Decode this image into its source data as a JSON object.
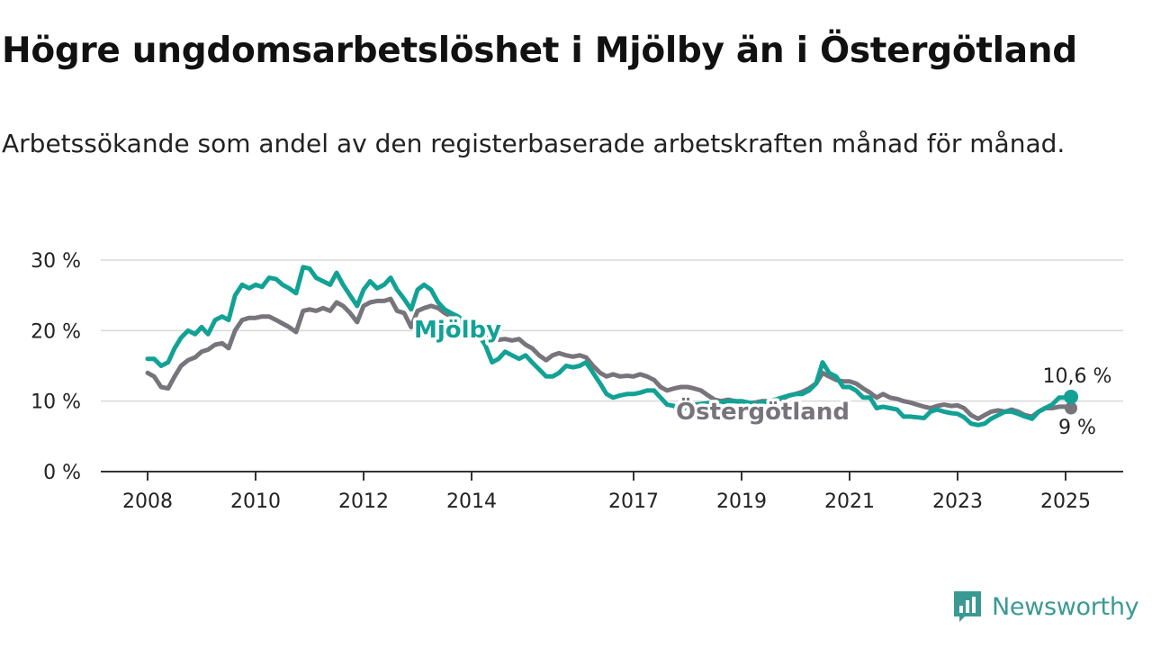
{
  "title": "Högre ungdomsarbetslöshet i Mjölby än i Östergötland",
  "subtitle": "Arbetssökande som andel av den registerbaserade arbetskraften månad för månad.",
  "brand": {
    "name": "Newsworthy",
    "color": "#3a9a93"
  },
  "colors": {
    "mjolby": "#12a295",
    "ostergotland": "#77747c",
    "grid": "#d9d9d9",
    "axis": "#333333"
  },
  "chart_data": {
    "type": "line",
    "title": "Högre ungdomsarbetslöshet i Mjölby än i Östergötland",
    "subtitle": "Arbetssökande som andel av den registerbaserade arbetskraften månad för månad.",
    "xlabel": "",
    "ylabel": "",
    "xlim": [
      2008.0,
      2025.1
    ],
    "ylim": [
      0,
      30
    ],
    "x_ticks": [
      2008,
      2010,
      2012,
      2014,
      2017,
      2019,
      2021,
      2023,
      2025
    ],
    "x_tick_labels": [
      "2008",
      "2010",
      "2012",
      "2014",
      "2017",
      "2019",
      "2021",
      "2023",
      "2025"
    ],
    "y_ticks": [
      0,
      10,
      20,
      30
    ],
    "y_tick_labels": [
      "0 %",
      "10 %",
      "20 %",
      "30 %"
    ],
    "grid": "horizontal",
    "legend": "direct labels on lines",
    "series": [
      {
        "name": "Mjölby",
        "label_text": "Mjölby",
        "end_value": 10.6,
        "end_label": "10,6 %",
        "points": [
          [
            2008.0,
            16.0
          ],
          [
            2008.12,
            16.0
          ],
          [
            2008.25,
            15.0
          ],
          [
            2008.38,
            15.5
          ],
          [
            2008.5,
            17.5
          ],
          [
            2008.62,
            19.0
          ],
          [
            2008.75,
            20.0
          ],
          [
            2008.88,
            19.5
          ],
          [
            2009.0,
            20.5
          ],
          [
            2009.12,
            19.5
          ],
          [
            2009.25,
            21.5
          ],
          [
            2009.38,
            22.0
          ],
          [
            2009.5,
            21.5
          ],
          [
            2009.62,
            25.0
          ],
          [
            2009.75,
            26.5
          ],
          [
            2009.88,
            26.0
          ],
          [
            2010.0,
            26.5
          ],
          [
            2010.12,
            26.2
          ],
          [
            2010.25,
            27.5
          ],
          [
            2010.38,
            27.3
          ],
          [
            2010.5,
            26.5
          ],
          [
            2010.62,
            26.0
          ],
          [
            2010.75,
            25.3
          ],
          [
            2010.88,
            29.0
          ],
          [
            2011.0,
            28.8
          ],
          [
            2011.12,
            27.5
          ],
          [
            2011.25,
            27.0
          ],
          [
            2011.38,
            26.5
          ],
          [
            2011.5,
            28.2
          ],
          [
            2011.62,
            26.5
          ],
          [
            2011.75,
            25.0
          ],
          [
            2011.88,
            23.5
          ],
          [
            2012.0,
            25.8
          ],
          [
            2012.12,
            27.0
          ],
          [
            2012.25,
            26.0
          ],
          [
            2012.38,
            26.5
          ],
          [
            2012.5,
            27.5
          ],
          [
            2012.62,
            25.8
          ],
          [
            2012.75,
            24.5
          ],
          [
            2012.88,
            23.0
          ],
          [
            2013.0,
            25.8
          ],
          [
            2013.12,
            26.5
          ],
          [
            2013.25,
            25.8
          ],
          [
            2013.38,
            24.0
          ],
          [
            2013.5,
            23.0
          ],
          [
            2013.62,
            22.5
          ],
          [
            2013.75,
            22.0
          ],
          [
            2013.88,
            21.2
          ],
          [
            2014.0,
            20.2
          ],
          [
            2014.12,
            19.5
          ],
          [
            2014.25,
            18.0
          ],
          [
            2014.38,
            15.5
          ],
          [
            2014.5,
            16.0
          ],
          [
            2014.62,
            17.0
          ],
          [
            2014.75,
            16.5
          ],
          [
            2014.88,
            16.0
          ],
          [
            2015.0,
            16.5
          ],
          [
            2015.12,
            15.5
          ],
          [
            2015.25,
            14.5
          ],
          [
            2015.38,
            13.5
          ],
          [
            2015.5,
            13.5
          ],
          [
            2015.62,
            14.0
          ],
          [
            2015.75,
            15.0
          ],
          [
            2015.88,
            14.8
          ],
          [
            2016.0,
            15.0
          ],
          [
            2016.12,
            15.5
          ],
          [
            2016.25,
            14.0
          ],
          [
            2016.38,
            12.5
          ],
          [
            2016.5,
            11.0
          ],
          [
            2016.62,
            10.5
          ],
          [
            2016.75,
            10.8
          ],
          [
            2016.88,
            11.0
          ],
          [
            2017.0,
            11.0
          ],
          [
            2017.12,
            11.2
          ],
          [
            2017.25,
            11.5
          ],
          [
            2017.38,
            11.5
          ],
          [
            2017.5,
            10.5
          ],
          [
            2017.62,
            9.5
          ],
          [
            2017.75,
            9.3
          ],
          [
            2017.88,
            8.5
          ],
          [
            2018.0,
            9.5
          ],
          [
            2018.12,
            9.5
          ],
          [
            2018.25,
            9.6
          ],
          [
            2018.38,
            9.7
          ],
          [
            2018.5,
            9.8
          ],
          [
            2018.62,
            9.8
          ],
          [
            2018.75,
            10.0
          ],
          [
            2018.88,
            10.0
          ],
          [
            2019.0,
            10.0
          ],
          [
            2019.12,
            9.8
          ],
          [
            2019.25,
            9.6
          ],
          [
            2019.38,
            9.8
          ],
          [
            2019.5,
            10.0
          ],
          [
            2019.62,
            10.2
          ],
          [
            2019.75,
            10.5
          ],
          [
            2019.88,
            10.8
          ],
          [
            2020.0,
            11.0
          ],
          [
            2020.12,
            11.0
          ],
          [
            2020.25,
            11.5
          ],
          [
            2020.38,
            12.5
          ],
          [
            2020.5,
            15.5
          ],
          [
            2020.62,
            14.0
          ],
          [
            2020.75,
            13.5
          ],
          [
            2020.88,
            12.0
          ],
          [
            2021.0,
            12.0
          ],
          [
            2021.12,
            11.5
          ],
          [
            2021.25,
            10.5
          ],
          [
            2021.38,
            10.5
          ],
          [
            2021.5,
            9.0
          ],
          [
            2021.62,
            9.2
          ],
          [
            2021.75,
            9.0
          ],
          [
            2021.88,
            8.8
          ],
          [
            2022.0,
            7.8
          ],
          [
            2022.12,
            7.8
          ],
          [
            2022.25,
            7.7
          ],
          [
            2022.38,
            7.6
          ],
          [
            2022.5,
            8.5
          ],
          [
            2022.62,
            8.8
          ],
          [
            2022.75,
            8.5
          ],
          [
            2022.88,
            8.3
          ],
          [
            2023.0,
            8.2
          ],
          [
            2023.12,
            7.7
          ],
          [
            2023.25,
            6.8
          ],
          [
            2023.38,
            6.6
          ],
          [
            2023.5,
            6.8
          ],
          [
            2023.62,
            7.5
          ],
          [
            2023.75,
            8.0
          ],
          [
            2023.88,
            8.5
          ],
          [
            2024.0,
            8.5
          ],
          [
            2024.12,
            8.2
          ],
          [
            2024.25,
            7.8
          ],
          [
            2024.38,
            7.5
          ],
          [
            2024.5,
            8.5
          ],
          [
            2024.62,
            9.0
          ],
          [
            2024.75,
            9.5
          ],
          [
            2024.88,
            10.5
          ],
          [
            2025.0,
            10.5
          ],
          [
            2025.1,
            10.6
          ]
        ]
      },
      {
        "name": "Östergötland",
        "label_text": "Östergötland",
        "end_value": 9,
        "end_label": "9 %",
        "points": [
          [
            2008.0,
            14.0
          ],
          [
            2008.12,
            13.5
          ],
          [
            2008.25,
            12.0
          ],
          [
            2008.38,
            11.8
          ],
          [
            2008.5,
            13.5
          ],
          [
            2008.62,
            15.0
          ],
          [
            2008.75,
            15.8
          ],
          [
            2008.88,
            16.2
          ],
          [
            2009.0,
            17.0
          ],
          [
            2009.12,
            17.3
          ],
          [
            2009.25,
            18.0
          ],
          [
            2009.38,
            18.2
          ],
          [
            2009.5,
            17.5
          ],
          [
            2009.62,
            20.0
          ],
          [
            2009.75,
            21.5
          ],
          [
            2009.88,
            21.8
          ],
          [
            2010.0,
            21.8
          ],
          [
            2010.12,
            22.0
          ],
          [
            2010.25,
            22.0
          ],
          [
            2010.38,
            21.5
          ],
          [
            2010.5,
            21.0
          ],
          [
            2010.62,
            20.5
          ],
          [
            2010.75,
            19.8
          ],
          [
            2010.88,
            22.8
          ],
          [
            2011.0,
            23.0
          ],
          [
            2011.12,
            22.8
          ],
          [
            2011.25,
            23.2
          ],
          [
            2011.38,
            22.8
          ],
          [
            2011.5,
            24.0
          ],
          [
            2011.62,
            23.5
          ],
          [
            2011.75,
            22.5
          ],
          [
            2011.88,
            21.2
          ],
          [
            2012.0,
            23.5
          ],
          [
            2012.12,
            24.0
          ],
          [
            2012.25,
            24.2
          ],
          [
            2012.38,
            24.2
          ],
          [
            2012.5,
            24.5
          ],
          [
            2012.62,
            22.8
          ],
          [
            2012.75,
            22.5
          ],
          [
            2012.88,
            20.5
          ],
          [
            2013.0,
            22.8
          ],
          [
            2013.12,
            23.2
          ],
          [
            2013.25,
            23.5
          ],
          [
            2013.38,
            23.2
          ],
          [
            2013.5,
            22.5
          ],
          [
            2013.62,
            22.0
          ],
          [
            2013.75,
            21.5
          ],
          [
            2013.88,
            21.0
          ],
          [
            2014.0,
            20.5
          ],
          [
            2014.12,
            20.0
          ],
          [
            2014.25,
            19.5
          ],
          [
            2014.38,
            19.0
          ],
          [
            2014.5,
            18.7
          ],
          [
            2014.62,
            18.8
          ],
          [
            2014.75,
            18.6
          ],
          [
            2014.88,
            18.8
          ],
          [
            2015.0,
            18.0
          ],
          [
            2015.12,
            17.5
          ],
          [
            2015.25,
            16.5
          ],
          [
            2015.38,
            15.8
          ],
          [
            2015.5,
            16.5
          ],
          [
            2015.62,
            16.8
          ],
          [
            2015.75,
            16.5
          ],
          [
            2015.88,
            16.3
          ],
          [
            2016.0,
            16.5
          ],
          [
            2016.12,
            16.2
          ],
          [
            2016.25,
            15.0
          ],
          [
            2016.38,
            14.0
          ],
          [
            2016.5,
            13.5
          ],
          [
            2016.62,
            13.8
          ],
          [
            2016.75,
            13.5
          ],
          [
            2016.88,
            13.6
          ],
          [
            2017.0,
            13.5
          ],
          [
            2017.12,
            13.8
          ],
          [
            2017.25,
            13.5
          ],
          [
            2017.38,
            13.0
          ],
          [
            2017.5,
            12.0
          ],
          [
            2017.62,
            11.5
          ],
          [
            2017.75,
            11.8
          ],
          [
            2017.88,
            12.0
          ],
          [
            2018.0,
            12.0
          ],
          [
            2018.12,
            11.8
          ],
          [
            2018.25,
            11.5
          ],
          [
            2018.38,
            10.8
          ],
          [
            2018.5,
            10.2
          ],
          [
            2018.62,
            10.0
          ],
          [
            2018.75,
            10.2
          ],
          [
            2018.88,
            10.0
          ],
          [
            2019.0,
            9.8
          ],
          [
            2019.12,
            9.7
          ],
          [
            2019.25,
            9.8
          ],
          [
            2019.38,
            10.0
          ],
          [
            2019.5,
            10.0
          ],
          [
            2019.62,
            10.2
          ],
          [
            2019.75,
            10.3
          ],
          [
            2019.88,
            10.8
          ],
          [
            2020.0,
            11.0
          ],
          [
            2020.12,
            11.3
          ],
          [
            2020.25,
            11.8
          ],
          [
            2020.38,
            12.5
          ],
          [
            2020.5,
            14.0
          ],
          [
            2020.62,
            13.5
          ],
          [
            2020.75,
            13.0
          ],
          [
            2020.88,
            12.8
          ],
          [
            2021.0,
            12.8
          ],
          [
            2021.12,
            12.5
          ],
          [
            2021.25,
            11.8
          ],
          [
            2021.38,
            11.2
          ],
          [
            2021.5,
            10.5
          ],
          [
            2021.62,
            11.0
          ],
          [
            2021.75,
            10.5
          ],
          [
            2021.88,
            10.3
          ],
          [
            2022.0,
            10.0
          ],
          [
            2022.12,
            9.8
          ],
          [
            2022.25,
            9.5
          ],
          [
            2022.38,
            9.2
          ],
          [
            2022.5,
            9.0
          ],
          [
            2022.62,
            9.3
          ],
          [
            2022.75,
            9.5
          ],
          [
            2022.88,
            9.3
          ],
          [
            2023.0,
            9.4
          ],
          [
            2023.12,
            9.0
          ],
          [
            2023.25,
            8.0
          ],
          [
            2023.38,
            7.5
          ],
          [
            2023.5,
            8.0
          ],
          [
            2023.62,
            8.5
          ],
          [
            2023.75,
            8.7
          ],
          [
            2023.88,
            8.5
          ],
          [
            2024.0,
            8.8
          ],
          [
            2024.12,
            8.5
          ],
          [
            2024.25,
            8.0
          ],
          [
            2024.38,
            7.8
          ],
          [
            2024.5,
            8.5
          ],
          [
            2024.62,
            9.0
          ],
          [
            2024.75,
            9.0
          ],
          [
            2024.88,
            9.2
          ],
          [
            2025.0,
            9.2
          ],
          [
            2025.1,
            9.0
          ]
        ]
      }
    ]
  }
}
